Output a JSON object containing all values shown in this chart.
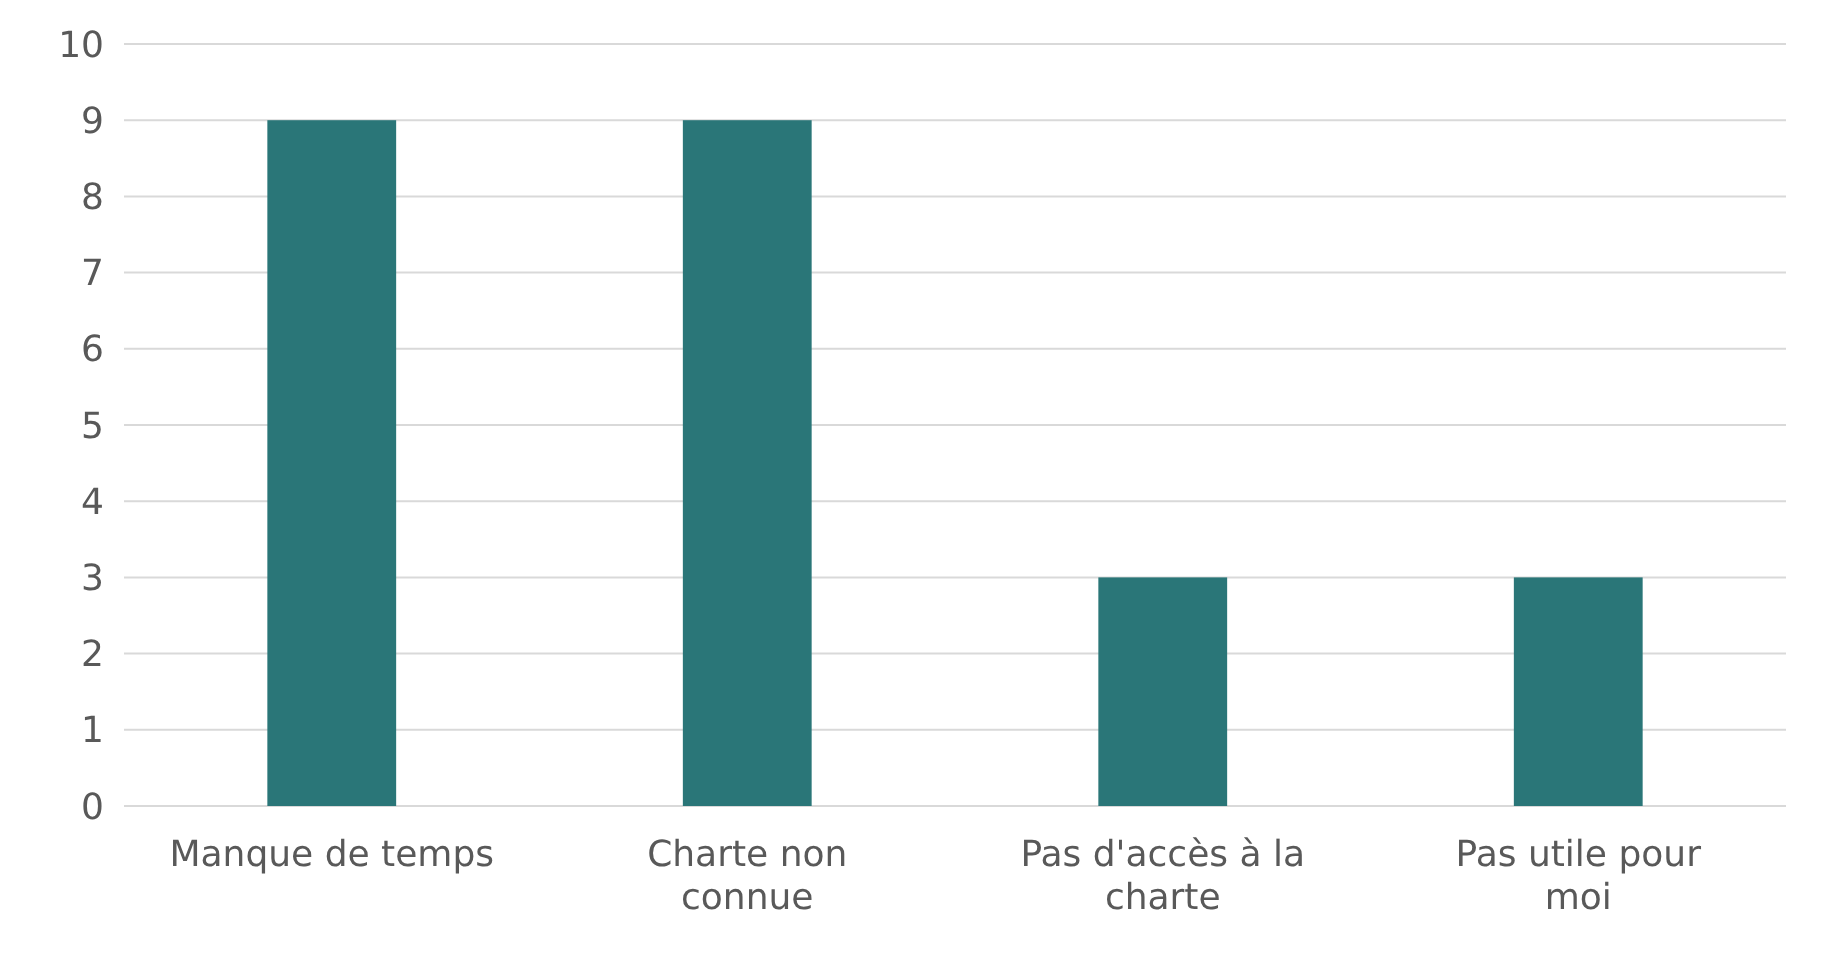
{
  "chart_data": {
    "type": "bar",
    "categories": [
      "Manque de temps",
      "Charte non connue",
      "Pas d'accès à la charte",
      "Pas utile pour moi"
    ],
    "values": [
      9,
      9,
      3,
      3
    ],
    "color": "#2a7678",
    "ylim": [
      0,
      10
    ],
    "yticks": [
      0,
      1,
      2,
      3,
      4,
      5,
      6,
      7,
      8,
      9,
      10
    ],
    "grid": "y"
  }
}
